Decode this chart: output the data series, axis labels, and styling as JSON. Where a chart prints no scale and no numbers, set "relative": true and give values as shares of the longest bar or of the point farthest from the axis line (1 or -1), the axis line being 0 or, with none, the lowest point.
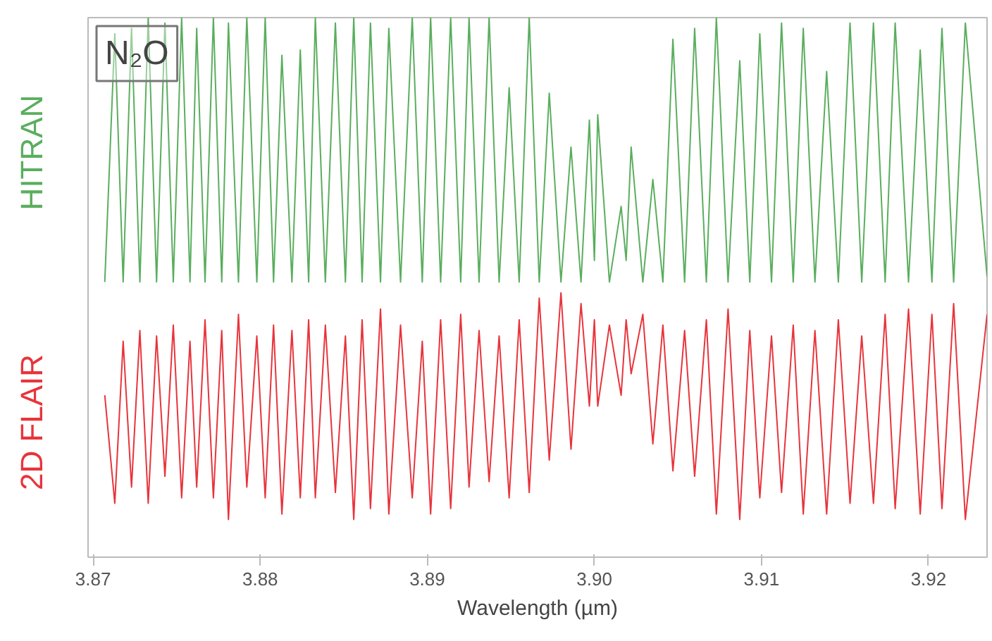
{
  "chart_data": {
    "type": "line",
    "relative": true,
    "xlabel": "Wavelength (µm)",
    "annotations": [
      "N₂O"
    ],
    "xlim": [
      3.8697,
      3.9235
    ],
    "xticks": [
      {
        "value": 3.87,
        "label": "3.87"
      },
      3.88,
      3.89,
      {
        "value": 3.9,
        "label": "3.90"
      },
      3.91,
      3.92
    ],
    "grid": false,
    "legend": false,
    "marker": "none",
    "line_style": "solid",
    "series": [
      {
        "name": "HITRAN",
        "color": "#5aae5e",
        "x": [
          3.8707,
          3.8713,
          3.8718,
          3.8723,
          3.8728,
          3.8733,
          3.8738,
          3.8743,
          3.8748,
          3.8753,
          3.8758,
          3.8762,
          3.8767,
          3.8772,
          3.8777,
          3.8781,
          3.8787,
          3.8792,
          3.8798,
          3.8803,
          3.8808,
          3.8813,
          3.8819,
          3.8824,
          3.8829,
          3.8833,
          3.8839,
          3.8845,
          3.8851,
          3.8856,
          3.8861,
          3.8866,
          3.8872,
          3.8877,
          3.8884,
          3.8891,
          3.8897,
          3.8902,
          3.8908,
          3.8914,
          3.892,
          3.8925,
          3.8931,
          3.8937,
          3.8943,
          3.8949,
          3.8955,
          3.8961,
          3.8967,
          3.8973,
          3.898,
          3.8986,
          3.8992,
          3.8997,
          3.9,
          3.9002,
          3.9009,
          3.9016,
          3.9019,
          3.9022,
          3.9029,
          3.9035,
          3.9041,
          3.9047,
          3.9054,
          3.906,
          3.9067,
          3.9073,
          3.908,
          3.9087,
          3.9093,
          3.9099,
          3.9106,
          3.9112,
          3.9119,
          3.9125,
          3.9132,
          3.9139,
          3.9146,
          3.9153,
          3.916,
          3.9167,
          3.9174,
          3.918,
          3.9188,
          3.9195,
          3.9202,
          3.9208,
          3.9215,
          3.9222,
          3.9235
        ],
        "values": [
          0.51,
          0.97,
          0.51,
          0.98,
          0.51,
          1.0,
          0.51,
          0.99,
          0.51,
          1.0,
          0.51,
          0.98,
          0.51,
          1.0,
          0.51,
          0.99,
          0.51,
          1.0,
          0.51,
          1.0,
          0.51,
          0.93,
          0.51,
          0.94,
          0.51,
          1.0,
          0.51,
          0.99,
          0.51,
          1.0,
          0.51,
          0.99,
          0.51,
          0.98,
          0.51,
          1.0,
          0.51,
          1.0,
          0.51,
          1.0,
          0.51,
          1.0,
          0.51,
          1.0,
          0.51,
          0.87,
          0.51,
          1.0,
          0.51,
          0.86,
          0.51,
          0.76,
          0.51,
          0.81,
          0.55,
          0.82,
          0.51,
          0.65,
          0.55,
          0.76,
          0.51,
          0.7,
          0.51,
          0.96,
          0.51,
          0.98,
          0.51,
          1.0,
          0.51,
          0.92,
          0.51,
          0.97,
          0.51,
          0.99,
          0.51,
          0.98,
          0.51,
          0.9,
          0.51,
          0.99,
          0.51,
          0.99,
          0.51,
          0.99,
          0.51,
          0.94,
          0.51,
          0.98,
          0.51,
          0.99,
          0.52
        ]
      },
      {
        "name": "2D FLAIR",
        "color": "#e8343c",
        "x": [
          3.8707,
          3.8713,
          3.8718,
          3.8723,
          3.8728,
          3.8733,
          3.8738,
          3.8743,
          3.8748,
          3.8753,
          3.8758,
          3.8762,
          3.8767,
          3.8772,
          3.8777,
          3.8781,
          3.8787,
          3.8792,
          3.8798,
          3.8803,
          3.8808,
          3.8813,
          3.8819,
          3.8824,
          3.8829,
          3.8833,
          3.8839,
          3.8845,
          3.8851,
          3.8856,
          3.8861,
          3.8866,
          3.8872,
          3.8877,
          3.8884,
          3.8891,
          3.8897,
          3.8902,
          3.8908,
          3.8914,
          3.892,
          3.8925,
          3.8931,
          3.8937,
          3.8943,
          3.8949,
          3.8955,
          3.8961,
          3.8967,
          3.8973,
          3.898,
          3.8986,
          3.8992,
          3.8997,
          3.9,
          3.9002,
          3.9009,
          3.9016,
          3.9019,
          3.9022,
          3.9029,
          3.9035,
          3.9041,
          3.9047,
          3.9054,
          3.906,
          3.9067,
          3.9073,
          3.908,
          3.9087,
          3.9093,
          3.9099,
          3.9106,
          3.9112,
          3.9119,
          3.9125,
          3.9132,
          3.9139,
          3.9146,
          3.9153,
          3.916,
          3.9167,
          3.9174,
          3.918,
          3.9188,
          3.9195,
          3.9202,
          3.9208,
          3.9215,
          3.9222,
          3.9235
        ],
        "values": [
          0.3,
          0.1,
          0.4,
          0.13,
          0.42,
          0.1,
          0.41,
          0.15,
          0.43,
          0.11,
          0.4,
          0.13,
          0.44,
          0.11,
          0.42,
          0.07,
          0.45,
          0.13,
          0.41,
          0.11,
          0.43,
          0.08,
          0.42,
          0.11,
          0.44,
          0.11,
          0.43,
          0.12,
          0.41,
          0.07,
          0.44,
          0.09,
          0.46,
          0.08,
          0.43,
          0.11,
          0.4,
          0.08,
          0.44,
          0.09,
          0.45,
          0.13,
          0.42,
          0.14,
          0.41,
          0.11,
          0.44,
          0.12,
          0.48,
          0.18,
          0.49,
          0.2,
          0.47,
          0.28,
          0.44,
          0.28,
          0.43,
          0.3,
          0.44,
          0.34,
          0.45,
          0.21,
          0.43,
          0.16,
          0.42,
          0.15,
          0.44,
          0.08,
          0.46,
          0.07,
          0.42,
          0.11,
          0.41,
          0.12,
          0.43,
          0.08,
          0.42,
          0.08,
          0.44,
          0.1,
          0.41,
          0.1,
          0.45,
          0.09,
          0.46,
          0.08,
          0.45,
          0.09,
          0.47,
          0.07,
          0.45
        ]
      }
    ]
  }
}
